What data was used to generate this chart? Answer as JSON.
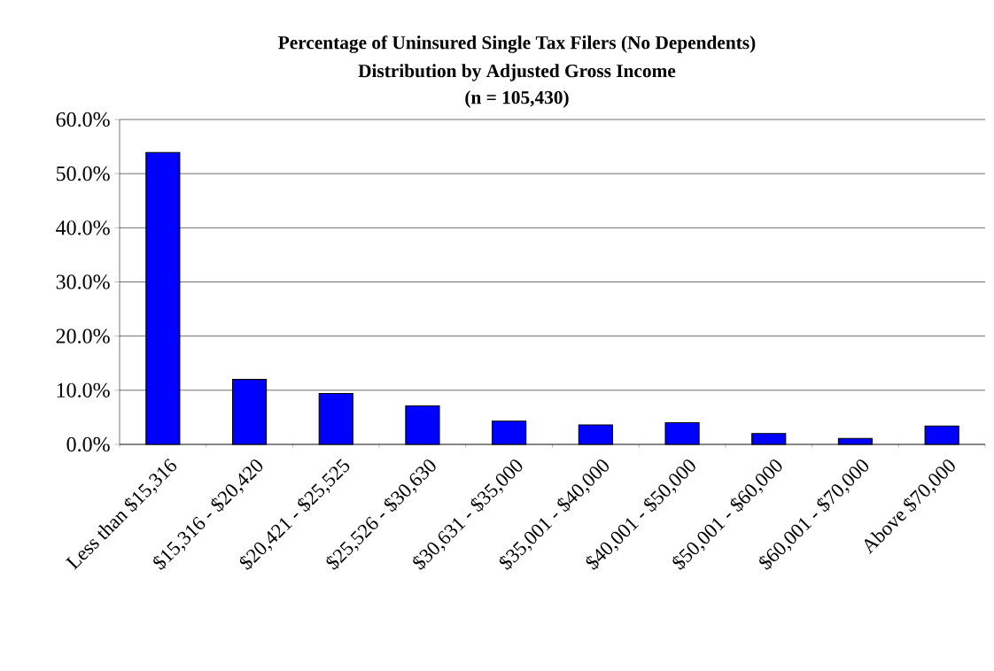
{
  "chart_data": {
    "type": "bar",
    "title": "Percentage of Uninsured Single Tax Filers (No Dependents)",
    "subtitle": "Distribution by Adjusted Gross Income",
    "annotations": [
      "(n = 105,430)"
    ],
    "categories": [
      "Less than $15,316",
      "$15,316 - $20,420",
      "$20,421 - $25,525",
      "$25,526 - $30,630",
      "$30,631 - $35,000",
      "$35,001 - $40,000",
      "$40,001 - $50,000",
      "$50,001 - $60,000",
      "$60,001 - $70,000",
      "Above $70,000"
    ],
    "values": [
      53.9,
      12.0,
      9.4,
      7.1,
      4.3,
      3.6,
      4.0,
      2.0,
      1.1,
      3.4
    ],
    "color": "#0000ff",
    "ylim": [
      0,
      60
    ],
    "yticks": [
      {
        "value": 0,
        "label": "0.0%"
      },
      {
        "value": 10,
        "label": "10.0%"
      },
      {
        "value": 20,
        "label": "20.0%"
      },
      {
        "value": 30,
        "label": "30.0%"
      },
      {
        "value": 40,
        "label": "40.0%"
      },
      {
        "value": 50,
        "label": "50.0%"
      },
      {
        "value": 60,
        "label": "60.0%"
      }
    ],
    "grid": "y"
  }
}
